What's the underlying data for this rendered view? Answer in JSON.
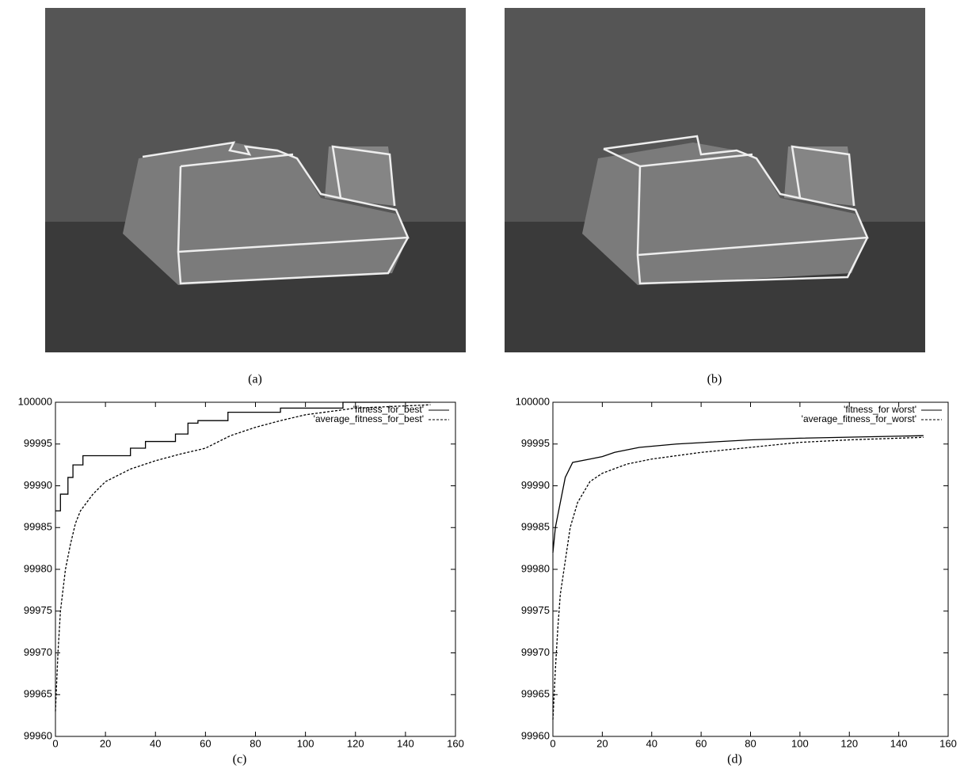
{
  "panels": [
    {
      "caption": "(a)"
    },
    {
      "caption": "(b)"
    }
  ],
  "chart_data": [
    {
      "type": "line",
      "caption": "(c)",
      "xlim": [
        0,
        160
      ],
      "ylim": [
        99960,
        100000
      ],
      "xticks": [
        0,
        20,
        40,
        60,
        80,
        100,
        120,
        140,
        160
      ],
      "yticks": [
        99960,
        99965,
        99970,
        99975,
        99980,
        99985,
        99990,
        99995,
        100000
      ],
      "legend": "upper right",
      "series": [
        {
          "name": "'fitness_for_best'",
          "color": "#000000",
          "dash": "solid",
          "x": [
            0,
            2,
            2,
            5,
            5,
            7,
            7,
            11,
            11,
            30,
            30,
            36,
            36,
            48,
            48,
            53,
            53,
            57,
            57,
            69,
            69,
            90,
            90,
            115,
            115,
            150
          ],
          "values": [
            99987,
            99987,
            99989,
            99989,
            99991,
            99991,
            99992.5,
            99992.5,
            99993.6,
            99993.6,
            99994.5,
            99994.5,
            99995.3,
            99995.3,
            99996.2,
            99996.2,
            99997.5,
            99997.5,
            99997.8,
            99997.8,
            99998.8,
            99998.8,
            99999.3,
            99999.3,
            100000,
            100000
          ]
        },
        {
          "name": "'average_fitness_for_best'",
          "color": "#000000",
          "dash": "dashed",
          "x": [
            0,
            1,
            2,
            4,
            6,
            8,
            10,
            15,
            20,
            30,
            40,
            50,
            60,
            70,
            80,
            90,
            100,
            120,
            150
          ],
          "values": [
            99963,
            99970,
            99975,
            99980,
            99983,
            99985.5,
            99987,
            99989,
            99990.5,
            99992,
            99993,
            99993.8,
            99994.5,
            99996,
            99997,
            99997.8,
            99998.5,
            99999.3,
            99999.7
          ]
        }
      ]
    },
    {
      "type": "line",
      "caption": "(d)",
      "xlim": [
        0,
        160
      ],
      "ylim": [
        99960,
        100000
      ],
      "xticks": [
        0,
        20,
        40,
        60,
        80,
        100,
        120,
        140,
        160
      ],
      "yticks": [
        99960,
        99965,
        99970,
        99975,
        99980,
        99985,
        99990,
        99995,
        100000
      ],
      "legend": "upper right",
      "series": [
        {
          "name": "'fitness_for worst'",
          "color": "#000000",
          "dash": "solid",
          "x": [
            0,
            1,
            3,
            5,
            8,
            15,
            20,
            25,
            35,
            50,
            80,
            100,
            150
          ],
          "values": [
            99982,
            99985,
            99988,
            99991,
            99992.8,
            99993.2,
            99993.5,
            99994,
            99994.6,
            99995,
            99995.5,
            99995.7,
            99996
          ]
        },
        {
          "name": "'average_fitness_for_worst'",
          "color": "#000000",
          "dash": "dashed",
          "x": [
            0,
            1,
            2,
            3,
            5,
            7,
            10,
            15,
            20,
            30,
            40,
            60,
            80,
            100,
            120,
            150
          ],
          "values": [
            99962,
            99968,
            99973,
            99977,
            99981,
            99985,
            99988,
            99990.5,
            99991.5,
            99992.6,
            99993.2,
            99994,
            99994.6,
            99995.2,
            99995.5,
            99995.8
          ]
        }
      ]
    }
  ]
}
